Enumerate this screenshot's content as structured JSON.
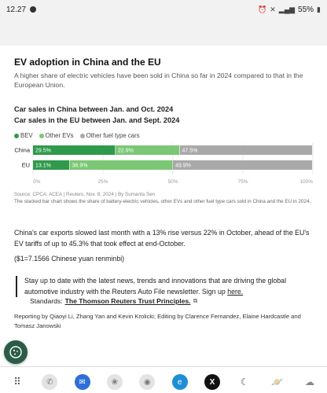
{
  "status_bar": {
    "time": "12.27",
    "battery": "55%"
  },
  "article": {
    "title": "EV adoption in China and the EU",
    "subtitle": "A higher share of electric vehicles have been sold in China so far in 2024 compared to that in the European Union.",
    "chart_heading_1": "Car sales in China between Jan. and Oct. 2024",
    "chart_heading_2": "Car sales in the EU between Jan. and Sept. 2024",
    "source": "Source: CPCA; ACEA | Reuters, Nov. 8, 2024 | By Sumanta Sen",
    "chart_description": "The stacked bar chart shows the share of battery-electric vehicles, other EVs and other fuel type cars sold in China and the EU in 2024.",
    "paragraph_1": "China's car exports slowed last month with a 13% rise versus 22% in October, ahead of the EU's EV tariffs of up to 45.3% that took effect at end-October.",
    "paragraph_2": "($1=7.1566 Chinese yuan renminbi)",
    "callout_text": "Stay up to date with the latest news, trends and innovations that are driving the global automotive industry with the Reuters Auto File newsletter. Sign up ",
    "callout_link": "here.",
    "credits": "Reporting by Qiaoyi Li, Zhang Yan and Kevin Krolicki; Editing by Clarence Fernandez, Elaine Hardcastle and Tomasz Janowski",
    "standards_label": "Standards:",
    "standards_link": "The Thomson Reuters Trust Principles."
  },
  "chart_data": {
    "type": "bar",
    "stacked": true,
    "orientation": "horizontal",
    "categories": [
      "China",
      "EU"
    ],
    "series": [
      {
        "name": "BEV",
        "values": [
          29.5,
          13.1
        ],
        "labels": [
          "29.5%",
          "13.1%"
        ],
        "color": "#2f9a4c"
      },
      {
        "name": "Other EVs",
        "values": [
          22.9,
          36.9
        ],
        "labels": [
          "22.9%",
          "36.9%"
        ],
        "color": "#7cc775"
      },
      {
        "name": "Other fuel type cars",
        "values": [
          47.5,
          49.9
        ],
        "labels": [
          "47.5%",
          "49.9%"
        ],
        "color": "#a9a9a9"
      }
    ],
    "xlim": [
      0,
      100
    ],
    "xticks": [
      "0%",
      "25%",
      "50%",
      "75%",
      "100%"
    ],
    "legend_position": "top-left",
    "grid": true
  },
  "colors": {
    "bev": "#2f9a4c",
    "other_ev": "#7cc775",
    "other_fuel": "#a9a9a9",
    "fab": "#2a5d48"
  },
  "dock_icons": [
    "apps-grid-icon",
    "phone-icon",
    "messages-icon",
    "gallery-icon",
    "camera-icon",
    "edge-icon",
    "x-icon",
    "moon-icon",
    "planet-icon",
    "weather-icon"
  ]
}
